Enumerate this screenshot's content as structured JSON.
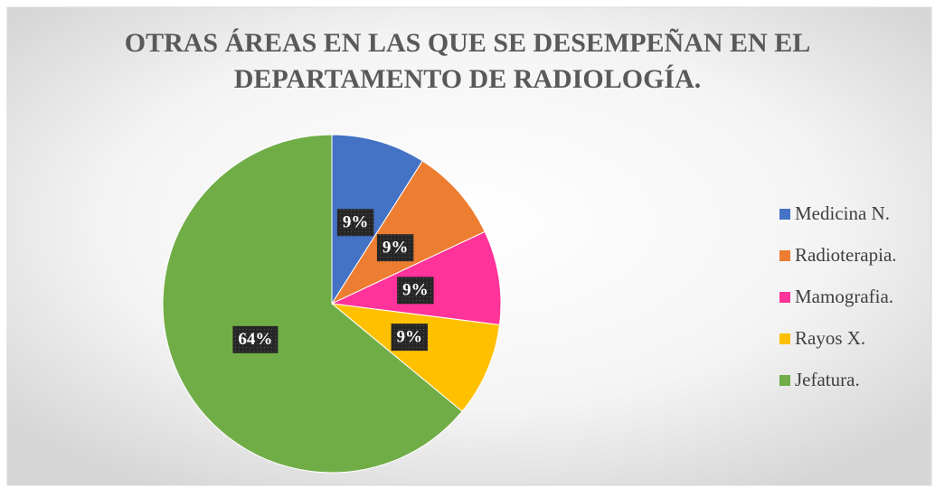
{
  "chart_data": {
    "type": "pie",
    "title": [
      "OTRAS ÁREAS EN LAS QUE SE DESEMPEÑAN EN EL",
      "DEPARTAMENTO DE RADIOLOGÍA."
    ],
    "categories": [
      "Medicina N.",
      "Radioterapia.",
      "Mamografia.",
      "Rayos X.",
      "Jefatura."
    ],
    "values": [
      9,
      9,
      9,
      9,
      64
    ],
    "value_labels": [
      "9%",
      "9%",
      "9%",
      "9%",
      "64%"
    ],
    "colors": [
      "#4472c4",
      "#ed7d31",
      "#ff3399",
      "#ffc000",
      "#70ad47"
    ],
    "legend": "right"
  }
}
